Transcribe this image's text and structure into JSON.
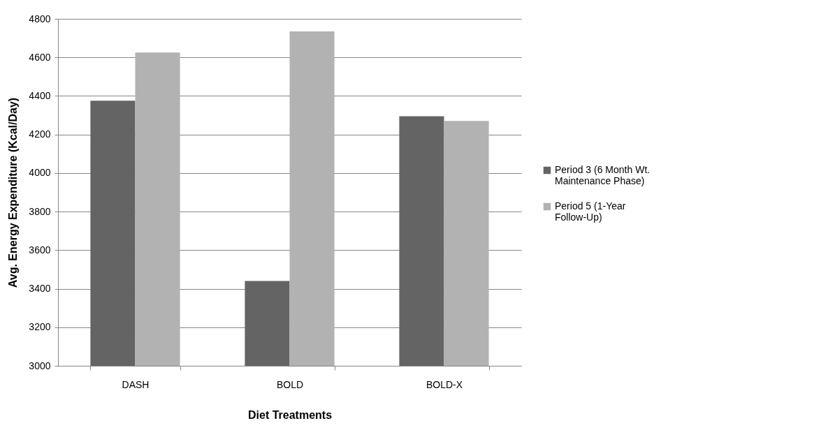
{
  "chart_data": {
    "type": "bar",
    "xlabel": "Diet Treatments",
    "ylabel": "Avg. Energy Expenditure (Kcal/Day)",
    "categories": [
      "DASH",
      "BOLD",
      "BOLD-X"
    ],
    "series": [
      {
        "name": "Period 3 (6 Month Wt. Maintenance Phase)",
        "color": "#646464",
        "values": [
          4375,
          3440,
          4295
        ]
      },
      {
        "name": "Period 5 (1-Year Follow-Up)",
        "color": "#b2b2b2",
        "values": [
          4625,
          4735,
          4270
        ]
      }
    ],
    "ylim": [
      3000,
      4800
    ],
    "yticks": [
      3000,
      3200,
      3400,
      3600,
      3800,
      4000,
      4200,
      4400,
      4600,
      4800
    ],
    "grid": "y",
    "legend": "right"
  }
}
